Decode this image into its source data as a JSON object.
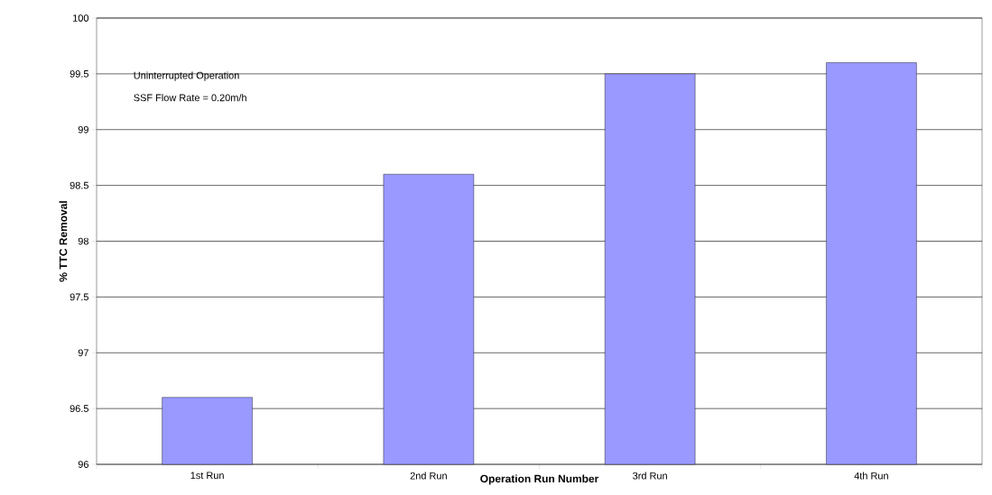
{
  "chart_data": {
    "type": "bar",
    "xlabel": "Operation Run Number",
    "ylabel": "% TTC Removal",
    "categories": [
      "1st Run",
      "2nd Run",
      "3rd Run",
      "4th Run"
    ],
    "values": [
      96.6,
      98.6,
      99.5,
      99.6
    ],
    "color": "#9999ff",
    "ylim": [
      96,
      100
    ],
    "yticks": [
      96,
      96.5,
      97,
      97.5,
      98,
      98.5,
      99,
      99.5,
      100
    ],
    "grid": "y",
    "annotations": [
      "Uninterrupted  Operation",
      "SSF Flow Rate = 0.20m/h"
    ]
  }
}
